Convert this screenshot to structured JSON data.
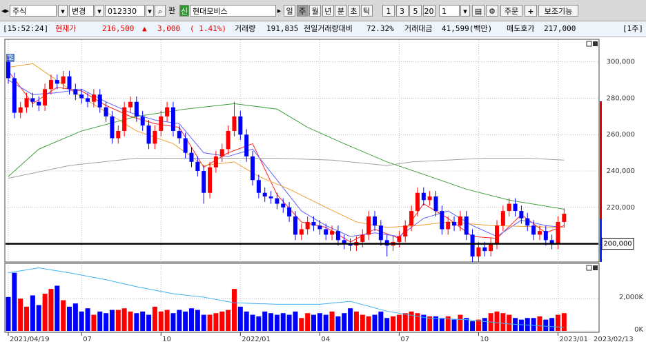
{
  "toolbar": {
    "market": "주식",
    "change": "변경",
    "code": "012330",
    "pan": "판",
    "sin": "신",
    "name": "현대모비스",
    "periods": [
      "일",
      "주",
      "월",
      "년",
      "분",
      "초",
      "틱"
    ],
    "numbers": [
      "1",
      "3",
      "5",
      "20"
    ],
    "count": "1",
    "order": "주문",
    "aux": "보조기능"
  },
  "info": {
    "time": "[15:52:24]",
    "price_label": "현재가",
    "price": "216,500",
    "arrow": "▲",
    "change": "3,000",
    "change_pct": "( 1.41%)",
    "volume_label": "거래량",
    "volume": "191,835",
    "ratio_label": "전일거래량대비",
    "ratio": "72.32%",
    "amount_label": "거래대금",
    "amount": "41,599(백만)",
    "ask_label": "매도호가",
    "ask": "217,000",
    "unit": "[1주]"
  },
  "chart_data": {
    "type": "candlestick",
    "icon": "호",
    "up_color": "#ff0000",
    "down_color": "#0000ff",
    "x_labels": [
      {
        "index": 0,
        "label": "2021/04/19"
      },
      {
        "index": 12,
        "label": "07"
      },
      {
        "index": 25,
        "label": "10"
      },
      {
        "index": 38,
        "label": "2022/01"
      },
      {
        "index": 51,
        "label": "04"
      },
      {
        "index": 64,
        "label": "07"
      },
      {
        "index": 77,
        "label": "10"
      },
      {
        "index": 90,
        "label": "2023/01"
      }
    ],
    "cursor_date": "2023/02/13",
    "open": [
      300000,
      291000,
      272000,
      275000,
      280000,
      278000,
      276000,
      285000,
      290000,
      288000,
      292000,
      285000,
      282000,
      280000,
      278000,
      282000,
      275000,
      270000,
      258000,
      262000,
      275000,
      278000,
      270000,
      265000,
      255000,
      262000,
      270000,
      275000,
      262000,
      258000,
      250000,
      245000,
      240000,
      228000,
      242000,
      248000,
      252000,
      262000,
      270000,
      260000,
      248000,
      235000,
      228000,
      226000,
      225000,
      222000,
      220000,
      215000,
      205000,
      208000,
      212000,
      210000,
      208000,
      205000,
      207000,
      202000,
      200000,
      199000,
      201000,
      205000,
      215000,
      210000,
      202000,
      199000,
      201000,
      204000,
      210000,
      218000,
      228000,
      224000,
      226000,
      218000,
      208000,
      212000,
      210000,
      215000,
      205000,
      193000,
      198000,
      196000,
      200000,
      210000,
      218000,
      222000,
      218000,
      214000,
      210000,
      205000,
      207000,
      202000,
      200000,
      212000
    ],
    "high": [
      303000,
      294000,
      278000,
      283000,
      283000,
      281000,
      288000,
      293000,
      293000,
      295000,
      295000,
      288000,
      285000,
      283000,
      285000,
      285000,
      278000,
      273000,
      265000,
      278000,
      281000,
      281000,
      273000,
      268000,
      265000,
      273000,
      278000,
      278000,
      265000,
      261000,
      253000,
      248000,
      243000,
      245000,
      251000,
      255000,
      265000,
      278000,
      273000,
      263000,
      251000,
      238000,
      231000,
      229000,
      228000,
      225000,
      223000,
      218000,
      211000,
      215000,
      215000,
      213000,
      211000,
      210000,
      210000,
      205000,
      203000,
      204000,
      208000,
      218000,
      218000,
      213000,
      205000,
      204000,
      207000,
      213000,
      221000,
      231000,
      231000,
      229000,
      229000,
      221000,
      215000,
      215000,
      218000,
      218000,
      208000,
      201000,
      201000,
      203000,
      213000,
      221000,
      225000,
      225000,
      221000,
      217000,
      213000,
      210000,
      210000,
      205000,
      215000,
      219500
    ],
    "low": [
      288000,
      269000,
      269000,
      272000,
      275000,
      273000,
      273000,
      282000,
      285000,
      285000,
      282000,
      279000,
      277000,
      275000,
      275000,
      272000,
      267000,
      255000,
      255000,
      259000,
      272000,
      267000,
      262000,
      252000,
      252000,
      259000,
      267000,
      259000,
      255000,
      247000,
      242000,
      237000,
      222000,
      225000,
      239000,
      245000,
      249000,
      259000,
      257000,
      245000,
      232000,
      225000,
      223000,
      222000,
      219000,
      217000,
      212000,
      202000,
      202000,
      205000,
      207000,
      205000,
      202000,
      202000,
      199000,
      197000,
      196000,
      196000,
      198000,
      202000,
      207000,
      199000,
      193000,
      196000,
      198000,
      201000,
      207000,
      215000,
      221000,
      221000,
      215000,
      205000,
      205000,
      207000,
      207000,
      202000,
      190000,
      190000,
      193000,
      193000,
      197000,
      207000,
      215000,
      215000,
      211000,
      207000,
      202000,
      202000,
      199000,
      197000,
      197000,
      209000
    ],
    "close": [
      291000,
      272000,
      275000,
      280000,
      278000,
      276000,
      285000,
      290000,
      288000,
      292000,
      285000,
      282000,
      280000,
      278000,
      282000,
      275000,
      270000,
      258000,
      262000,
      275000,
      278000,
      270000,
      265000,
      255000,
      262000,
      270000,
      275000,
      262000,
      258000,
      250000,
      245000,
      240000,
      228000,
      242000,
      248000,
      252000,
      262000,
      270000,
      260000,
      248000,
      235000,
      228000,
      226000,
      225000,
      222000,
      220000,
      215000,
      205000,
      208000,
      212000,
      210000,
      208000,
      205000,
      207000,
      202000,
      200000,
      199000,
      201000,
      205000,
      215000,
      210000,
      202000,
      199000,
      201000,
      204000,
      210000,
      218000,
      228000,
      224000,
      226000,
      218000,
      208000,
      212000,
      210000,
      215000,
      205000,
      193000,
      198000,
      196000,
      200000,
      210000,
      218000,
      222000,
      218000,
      214000,
      210000,
      205000,
      207000,
      202000,
      200000,
      212000,
      216500
    ],
    "ma_lines": [
      {
        "color": "#ff2020",
        "x": [
          0,
          4,
          8,
          12,
          16,
          20,
          24,
          28,
          32,
          36,
          40,
          44,
          48,
          52,
          56,
          60,
          64,
          68,
          72,
          76,
          80,
          84,
          88,
          91
        ],
        "values": [
          295000,
          277000,
          286000,
          284000,
          276000,
          270000,
          266000,
          264000,
          242000,
          250000,
          255000,
          227000,
          212000,
          209000,
          201000,
          208000,
          203000,
          222000,
          214000,
          204000,
          203000,
          216000,
          206000,
          210000
        ]
      },
      {
        "color": "#6060ff",
        "x": [
          0,
          4,
          8,
          12,
          16,
          20,
          24,
          28,
          32,
          36,
          40,
          44,
          48,
          52,
          56,
          60,
          64,
          68,
          72,
          76,
          80,
          84,
          88,
          91
        ],
        "values": [
          290000,
          282000,
          283000,
          285000,
          278000,
          272000,
          268000,
          266000,
          250000,
          248000,
          252000,
          235000,
          218000,
          210000,
          204000,
          206000,
          204000,
          214000,
          218000,
          210000,
          204000,
          213000,
          210000,
          209000
        ]
      },
      {
        "color": "#f0a030",
        "x": [
          0,
          4,
          10,
          21,
          27,
          32,
          37,
          41,
          46,
          52,
          57,
          62,
          67,
          72,
          79,
          91
        ],
        "values": [
          297000,
          299000,
          285000,
          262000,
          255000,
          243000,
          245000,
          237000,
          230000,
          220000,
          212000,
          209000,
          210000,
          212000,
          210000,
          209000
        ]
      },
      {
        "color": "#40a040",
        "x": [
          0,
          5,
          12,
          21,
          29,
          37,
          44,
          49,
          55,
          62,
          69,
          75,
          82,
          91
        ],
        "values": [
          237000,
          252000,
          262000,
          270000,
          274000,
          277000,
          274000,
          264000,
          255000,
          245000,
          237000,
          230000,
          224000,
          219000
        ]
      },
      {
        "color": "#a0a0a0",
        "x": [
          0,
          10,
          21,
          32,
          44,
          53,
          62,
          66,
          78,
          85,
          91
        ],
        "values": [
          236000,
          243000,
          247000,
          247000,
          247000,
          246000,
          243000,
          245000,
          247000,
          247000,
          246000
        ]
      }
    ],
    "ylim": [
      190000,
      312000
    ],
    "yticks": [
      {
        "value": 220000,
        "label": "220,000"
      },
      {
        "value": 240000,
        "label": "240,000"
      },
      {
        "value": 260000,
        "label": "260,000"
      },
      {
        "value": 280000,
        "label": "280,000"
      },
      {
        "value": 300000,
        "label": "300,000"
      }
    ],
    "price_line": {
      "value": 200000,
      "label": "200,000"
    },
    "volume": [
      2100,
      3600,
      2000,
      1500,
      2200,
      1600,
      2300,
      2600,
      2800,
      1900,
      1500,
      1700,
      1200,
      1400,
      1000,
      1200,
      1100,
      1300,
      1300,
      1400,
      1200,
      1100,
      1200,
      1000,
      1500,
      1200,
      1300,
      1100,
      1300,
      1200,
      1400,
      1300,
      1000,
      1000,
      1100,
      1200,
      1300,
      2600,
      1500,
      1200,
      1000,
      900,
      1200,
      1100,
      1000,
      1100,
      1000,
      1200,
      800,
      1100,
      1000,
      1100,
      1000,
      1200,
      900,
      1100,
      1400,
      1200,
      1000,
      900,
      1000,
      1200,
      800,
      900,
      1000,
      1100,
      1200,
      1100,
      1000,
      900,
      900,
      800,
      900,
      700,
      1000,
      800,
      600,
      700,
      800,
      1100,
      1200,
      1100,
      1000,
      800,
      700,
      800,
      800,
      900,
      700,
      800,
      1000,
      1100
    ],
    "volume_ma": {
      "color": "#40b0f0",
      "x": [
        0,
        5,
        10,
        16,
        21,
        27,
        32,
        37,
        44,
        51,
        56,
        62,
        69,
        75,
        82,
        91
      ],
      "values": [
        3600,
        3900,
        3600,
        3170,
        2740,
        2300,
        2090,
        1740,
        1650,
        1650,
        1830,
        1220,
        780,
        700,
        430,
        220
      ]
    },
    "vlim": [
      0,
      4100
    ],
    "vticks": [
      {
        "value": 0,
        "label": "0K"
      },
      {
        "value": 2000,
        "label": "2,000K"
      }
    ]
  }
}
